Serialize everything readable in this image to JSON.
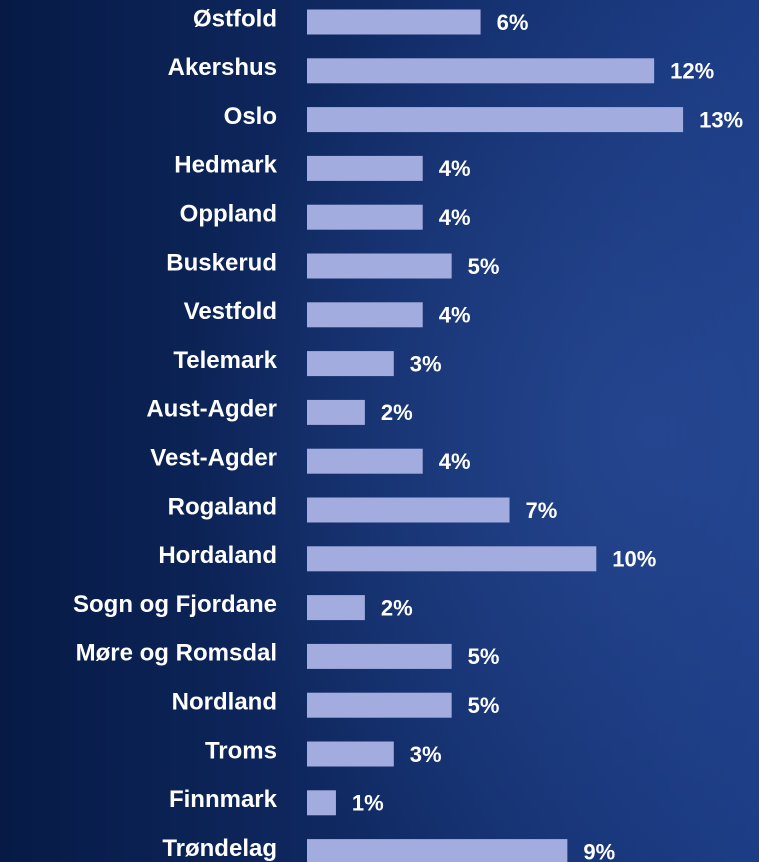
{
  "chart_data": {
    "type": "bar",
    "orientation": "horizontal",
    "categories": [
      "Østfold",
      "Akershus",
      "Oslo",
      "Hedmark",
      "Oppland",
      "Buskerud",
      "Vestfold",
      "Telemark",
      "Aust-Agder",
      "Vest-Agder",
      "Rogaland",
      "Hordaland",
      "Sogn og Fjordane",
      "Møre og Romsdal",
      "Nordland",
      "Troms",
      "Finnmark",
      "Trøndelag"
    ],
    "values": [
      6,
      12,
      13,
      4,
      4,
      5,
      4,
      3,
      2,
      4,
      7,
      10,
      2,
      5,
      5,
      3,
      1,
      9
    ],
    "value_labels": [
      "6%",
      "12%",
      "13%",
      "4%",
      "4%",
      "5%",
      "4%",
      "3%",
      "2%",
      "4%",
      "7%",
      "10%",
      "2%",
      "5%",
      "5%",
      "3%",
      "1%",
      "9%"
    ],
    "color": "#a3acdf"
  }
}
